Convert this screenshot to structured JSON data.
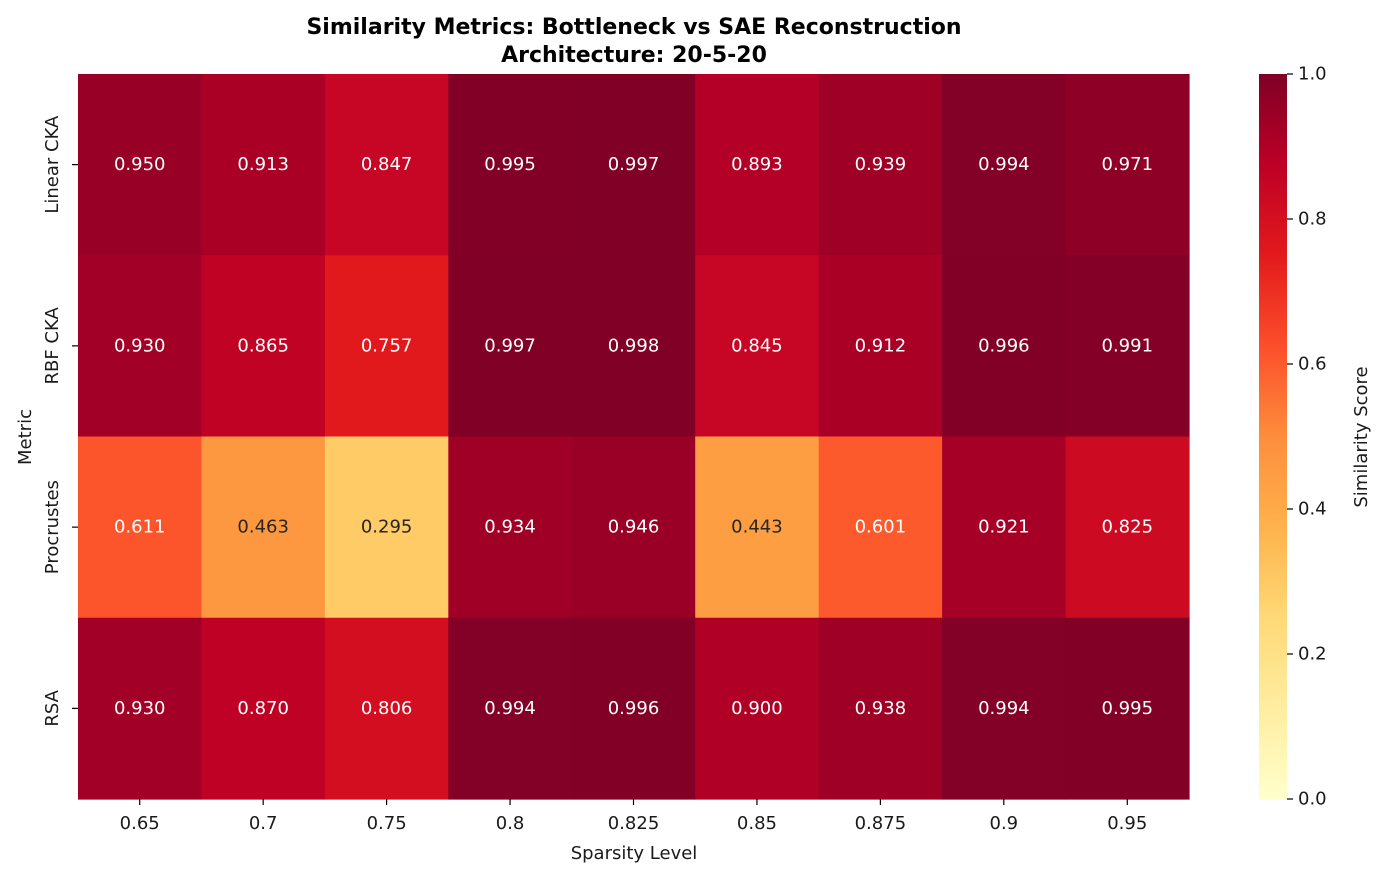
{
  "chart_data": {
    "type": "heatmap",
    "title": "Similarity Metrics: Bottleneck vs SAE Reconstruction",
    "subtitle": "Architecture: 20-5-20",
    "xlabel": "Sparsity Level",
    "ylabel": "Metric",
    "x_categories": [
      "0.65",
      "0.7",
      "0.75",
      "0.8",
      "0.825",
      "0.85",
      "0.875",
      "0.9",
      "0.95"
    ],
    "y_categories": [
      "Linear CKA",
      "RBF CKA",
      "Procrustes",
      "RSA"
    ],
    "values": [
      [
        0.95,
        0.913,
        0.847,
        0.995,
        0.997,
        0.893,
        0.939,
        0.994,
        0.971
      ],
      [
        0.93,
        0.865,
        0.757,
        0.997,
        0.998,
        0.845,
        0.912,
        0.996,
        0.991
      ],
      [
        0.611,
        0.463,
        0.295,
        0.934,
        0.946,
        0.443,
        0.601,
        0.921,
        0.825
      ],
      [
        0.93,
        0.87,
        0.806,
        0.994,
        0.996,
        0.9,
        0.938,
        0.994,
        0.995
      ]
    ],
    "value_labels": [
      [
        "0.950",
        "0.913",
        "0.847",
        "0.995",
        "0.997",
        "0.893",
        "0.939",
        "0.994",
        "0.971"
      ],
      [
        "0.930",
        "0.865",
        "0.757",
        "0.997",
        "0.998",
        "0.845",
        "0.912",
        "0.996",
        "0.991"
      ],
      [
        "0.611",
        "0.463",
        "0.295",
        "0.934",
        "0.946",
        "0.443",
        "0.601",
        "0.921",
        "0.825"
      ],
      [
        "0.930",
        "0.870",
        "0.806",
        "0.994",
        "0.996",
        "0.900",
        "0.938",
        "0.994",
        "0.995"
      ]
    ],
    "colorbar": {
      "label": "Similarity Score",
      "range": [
        0.0,
        1.0
      ],
      "ticks": [
        "0.0",
        "0.2",
        "0.4",
        "0.6",
        "0.8",
        "1.0"
      ],
      "colormap": "YlOrRd"
    },
    "annotations": true,
    "grid": false
  }
}
